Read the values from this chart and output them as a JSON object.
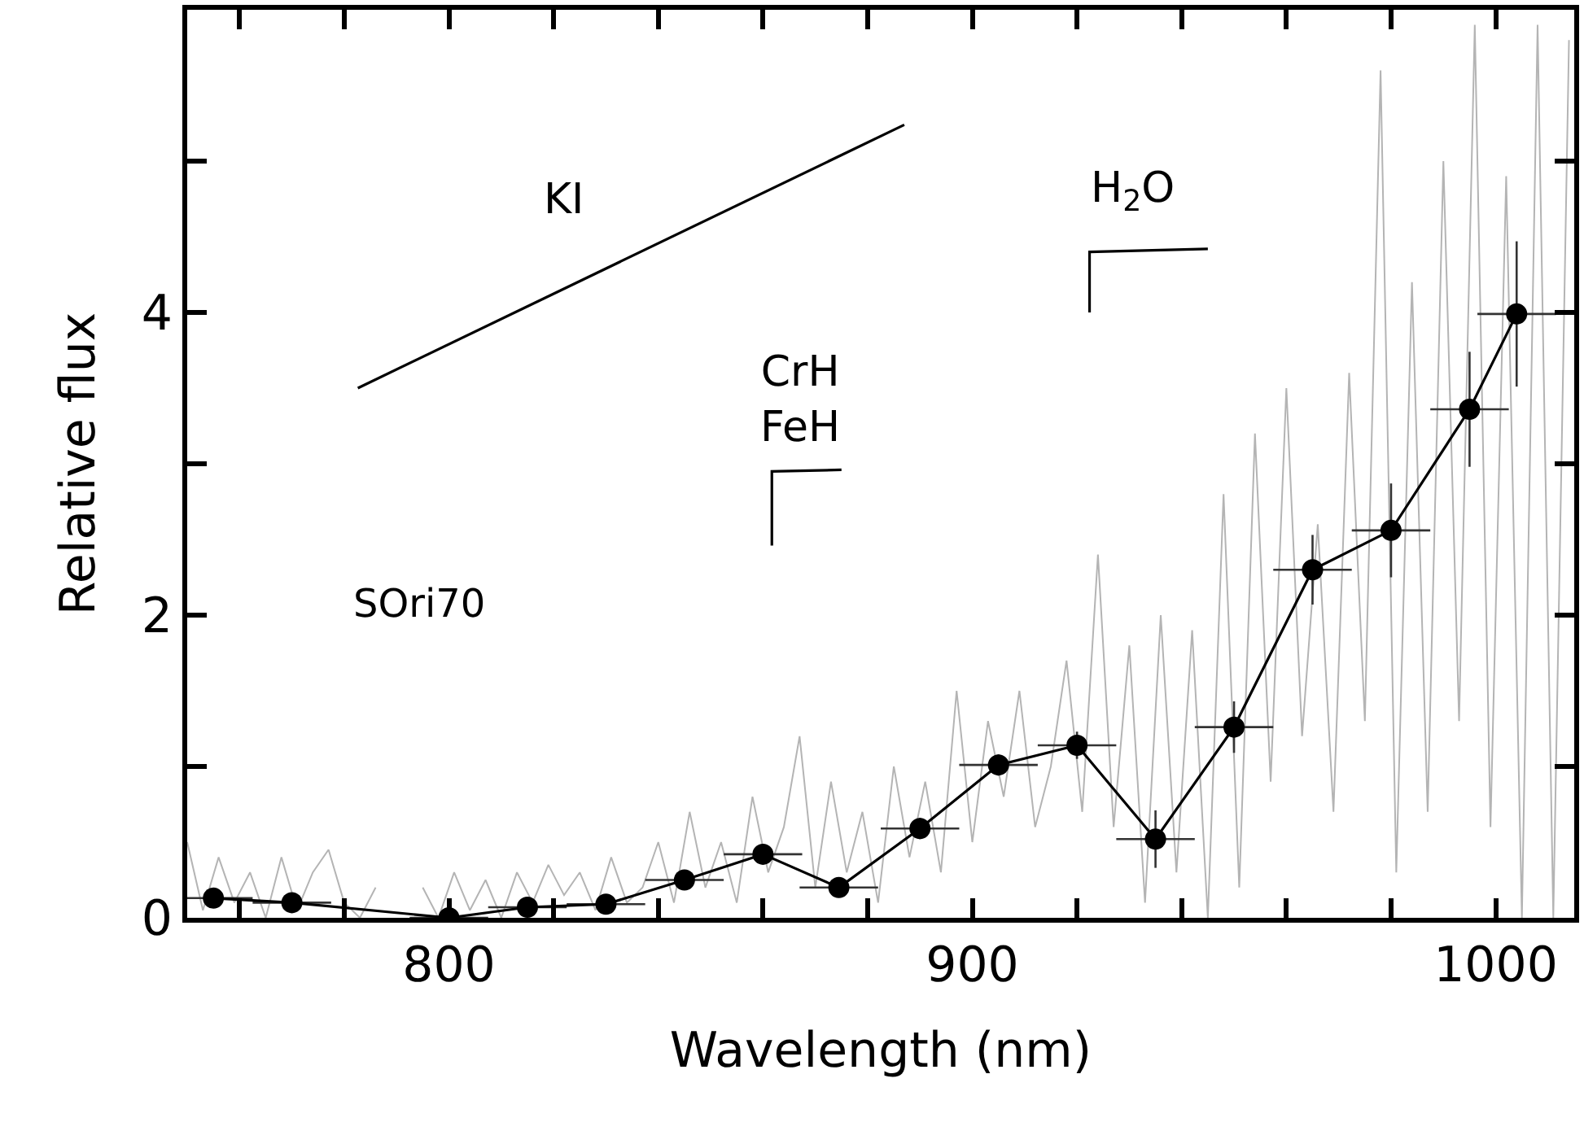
{
  "chart_data": {
    "type": "line",
    "xlabel": "Wavelength (nm)",
    "ylabel": "Relative flux",
    "xlim": [
      750,
      1015
    ],
    "ylim": [
      0,
      6
    ],
    "xticks": [
      {
        "value": 760,
        "label": null
      },
      {
        "value": 780,
        "label": null
      },
      800,
      {
        "value": 820,
        "label": null
      },
      {
        "value": 840,
        "label": null
      },
      {
        "value": 860,
        "label": null
      },
      {
        "value": 880,
        "label": null
      },
      900,
      {
        "value": 920,
        "label": null
      },
      {
        "value": 940,
        "label": null
      },
      {
        "value": 960,
        "label": null
      },
      {
        "value": 980,
        "label": null
      },
      1000
    ],
    "yticks": [
      0,
      {
        "value": 1,
        "label": null
      },
      2,
      {
        "value": 3,
        "label": null
      },
      4,
      {
        "value": 5,
        "label": null
      }
    ],
    "marker": "none",
    "line_style": "solid",
    "series": [
      {
        "color": "#b4b4b4",
        "x": [
          750,
          753,
          756,
          759,
          762,
          765,
          768,
          771,
          774,
          777,
          780,
          783,
          786,
          789,
          792,
          795,
          798,
          801,
          804,
          807,
          810,
          813,
          816,
          819,
          822,
          825,
          828,
          831,
          834,
          837,
          840,
          843,
          846,
          849,
          852,
          855,
          858,
          861,
          864,
          867,
          870,
          873,
          876,
          879,
          882,
          885,
          888,
          891,
          894,
          897,
          900,
          903,
          906,
          909,
          912,
          915,
          918,
          921,
          924,
          927,
          930,
          933,
          936,
          939,
          942,
          945,
          948,
          951,
          954,
          957,
          960,
          963,
          966,
          969,
          972,
          975,
          978,
          981,
          984,
          987,
          990,
          993,
          996,
          999,
          1002,
          1005,
          1008,
          1011,
          1014
        ],
        "values": [
          0.5,
          0.05,
          0.4,
          0.1,
          0.3,
          0.0,
          0.4,
          0.05,
          0.3,
          0.45,
          0.1,
          0.0,
          0.2,
          null,
          null,
          0.2,
          0.0,
          0.3,
          0.05,
          0.25,
          0.0,
          0.3,
          0.1,
          0.35,
          0.15,
          0.3,
          0.05,
          0.4,
          0.1,
          0.2,
          0.5,
          0.1,
          0.7,
          0.2,
          0.5,
          0.1,
          0.8,
          0.3,
          0.6,
          1.2,
          0.2,
          0.9,
          0.3,
          0.7,
          0.1,
          1.0,
          0.4,
          0.9,
          0.3,
          1.5,
          0.5,
          1.3,
          0.8,
          1.5,
          0.6,
          1.0,
          1.7,
          0.7,
          2.4,
          0.6,
          1.8,
          0.1,
          2.0,
          0.3,
          1.9,
          0.0,
          2.8,
          0.2,
          3.2,
          0.9,
          3.5,
          1.2,
          2.6,
          0.7,
          3.6,
          1.3,
          5.6,
          0.3,
          4.2,
          0.7,
          5.0,
          1.3,
          5.9,
          0.6,
          4.9,
          0.0,
          5.9,
          0.0,
          5.8
        ]
      },
      {
        "color": "#000000",
        "marker": "circle",
        "x": [
          755,
          770,
          800,
          815,
          830,
          845,
          860,
          874.5,
          890,
          905,
          920,
          935,
          950,
          965,
          980,
          995,
          1004
        ],
        "values": [
          0.13,
          0.1,
          0.0,
          0.07,
          0.09,
          0.25,
          0.42,
          0.2,
          0.59,
          1.01,
          1.14,
          0.52,
          1.26,
          2.3,
          2.56,
          3.36,
          3.99
        ],
        "errors": [
          0.03,
          0.03,
          0.03,
          0.04,
          0.04,
          0.05,
          0.06,
          0.06,
          0.07,
          0.07,
          0.09,
          0.19,
          0.17,
          0.23,
          0.31,
          0.38,
          0.48
        ],
        "xerrors": [
          7.5,
          7.5,
          7.5,
          7.5,
          7.5,
          7.5,
          7.5,
          7.5,
          7.5,
          7.5,
          7.5,
          7.5,
          7.5,
          7.5,
          7.5,
          7.5,
          7.5
        ]
      },
      {
        "color": "#000000",
        "x": [
          782.6,
          887
        ],
        "values": [
          3.5,
          5.24
        ]
      },
      {
        "color": "#000000",
        "x": [
          861.7,
          861.7,
          875
        ],
        "values": [
          2.46,
          2.95,
          2.96
        ]
      },
      {
        "color": "#000000",
        "x": [
          922.4,
          922.4,
          945
        ],
        "values": [
          4.0,
          4.4,
          4.42
        ]
      }
    ],
    "annotations": [
      "KI",
      "CrH\nFeH",
      "H$_{2}$O",
      "SOri70"
    ]
  }
}
